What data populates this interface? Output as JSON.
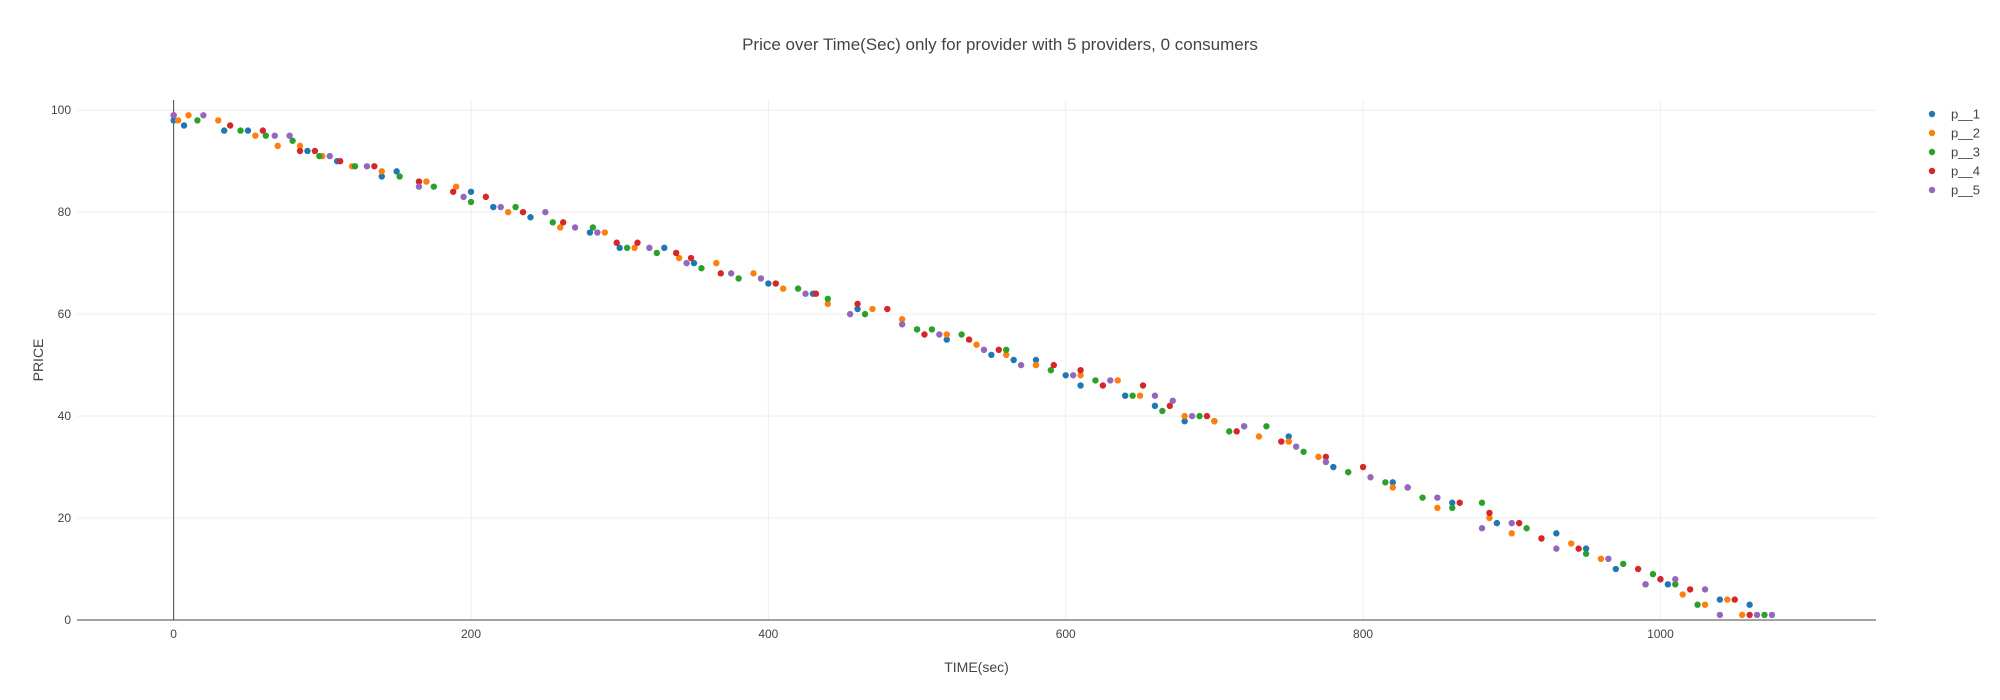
{
  "chart_data": {
    "type": "scatter",
    "title": "Price over Time(Sec) only for provider with 5 providers, 0 consumers",
    "xlabel": "TIME(sec)",
    "ylabel": "PRICE",
    "xlim": [
      -65,
      1145
    ],
    "ylim": [
      0,
      102
    ],
    "xticks": [
      0,
      200,
      400,
      600,
      800,
      1000
    ],
    "yticks": [
      0,
      20,
      40,
      60,
      80,
      100
    ],
    "grid": true,
    "legend_position": "top-right",
    "series": [
      {
        "name": "p__1",
        "color": "#1f77b4",
        "x": [
          0,
          7,
          34,
          50,
          90,
          110,
          140,
          150,
          200,
          215,
          240,
          280,
          300,
          330,
          350,
          400,
          430,
          460,
          500,
          520,
          550,
          565,
          580,
          600,
          610,
          640,
          660,
          680,
          700,
          720,
          750,
          780,
          820,
          860,
          890,
          930,
          950,
          970,
          1000,
          1005,
          1040,
          1060
        ],
        "y": [
          98,
          97,
          96,
          96,
          92,
          90,
          87,
          88,
          84,
          81,
          79,
          76,
          73,
          73,
          70,
          66,
          64,
          61,
          57,
          55,
          52,
          51,
          51,
          48,
          46,
          44,
          42,
          39,
          39,
          38,
          36,
          30,
          27,
          23,
          19,
          17,
          14,
          10,
          8,
          7,
          4,
          3
        ]
      },
      {
        "name": "p__2",
        "color": "#ff7f0e",
        "x": [
          3,
          10,
          30,
          55,
          70,
          85,
          100,
          120,
          140,
          170,
          190,
          225,
          260,
          290,
          310,
          340,
          365,
          390,
          410,
          440,
          470,
          490,
          520,
          540,
          560,
          580,
          610,
          635,
          650,
          680,
          700,
          730,
          750,
          770,
          790,
          820,
          850,
          885,
          900,
          920,
          940,
          960,
          990,
          1015,
          1030,
          1045,
          1055
        ],
        "y": [
          98,
          99,
          98,
          95,
          93,
          93,
          91,
          89,
          88,
          86,
          85,
          80,
          77,
          76,
          73,
          71,
          70,
          68,
          65,
          62,
          61,
          59,
          56,
          54,
          52,
          50,
          48,
          47,
          44,
          40,
          39,
          36,
          35,
          32,
          29,
          26,
          22,
          20,
          17,
          16,
          15,
          12,
          7,
          5,
          3,
          4,
          1
        ]
      },
      {
        "name": "p__3",
        "color": "#2ca02c",
        "x": [
          16,
          45,
          62,
          80,
          98,
          122,
          152,
          175,
          200,
          230,
          255,
          282,
          305,
          325,
          355,
          380,
          420,
          440,
          465,
          500,
          510,
          530,
          560,
          590,
          620,
          645,
          665,
          690,
          710,
          735,
          760,
          790,
          815,
          840,
          860,
          880,
          910,
          950,
          975,
          995,
          1010,
          1025,
          1070
        ],
        "y": [
          98,
          96,
          95,
          94,
          91,
          89,
          87,
          85,
          82,
          81,
          78,
          77,
          73,
          72,
          69,
          67,
          65,
          63,
          60,
          57,
          57,
          56,
          53,
          49,
          47,
          44,
          41,
          40,
          37,
          38,
          33,
          29,
          27,
          24,
          22,
          23,
          18,
          13,
          11,
          9,
          7,
          3,
          1
        ]
      },
      {
        "name": "p__4",
        "color": "#d62728",
        "x": [
          0,
          38,
          60,
          85,
          95,
          112,
          135,
          165,
          188,
          210,
          235,
          262,
          298,
          312,
          338,
          348,
          368,
          405,
          432,
          460,
          480,
          505,
          535,
          555,
          592,
          610,
          625,
          652,
          670,
          695,
          715,
          745,
          775,
          800,
          830,
          865,
          885,
          905,
          920,
          945,
          985,
          1000,
          1020,
          1050,
          1060
        ],
        "y": [
          99,
          97,
          96,
          92,
          92,
          90,
          89,
          86,
          84,
          83,
          80,
          78,
          74,
          74,
          72,
          71,
          68,
          66,
          64,
          62,
          61,
          56,
          55,
          53,
          50,
          49,
          46,
          46,
          42,
          40,
          37,
          35,
          32,
          30,
          26,
          23,
          21,
          19,
          16,
          14,
          10,
          8,
          6,
          4,
          1
        ]
      },
      {
        "name": "p__5",
        "color": "#9467bd",
        "x": [
          0,
          20,
          68,
          78,
          105,
          130,
          165,
          195,
          220,
          250,
          270,
          285,
          320,
          345,
          375,
          395,
          425,
          455,
          490,
          515,
          545,
          570,
          605,
          630,
          660,
          672,
          685,
          720,
          755,
          775,
          805,
          830,
          850,
          880,
          900,
          930,
          965,
          990,
          1010,
          1030,
          1040,
          1065,
          1075
        ],
        "y": [
          99,
          99,
          95,
          95,
          91,
          89,
          85,
          83,
          81,
          80,
          77,
          76,
          73,
          70,
          68,
          67,
          64,
          60,
          58,
          56,
          53,
          50,
          48,
          47,
          44,
          43,
          40,
          38,
          34,
          31,
          28,
          26,
          24,
          18,
          19,
          14,
          12,
          7,
          8,
          6,
          1,
          1,
          1
        ]
      }
    ]
  }
}
